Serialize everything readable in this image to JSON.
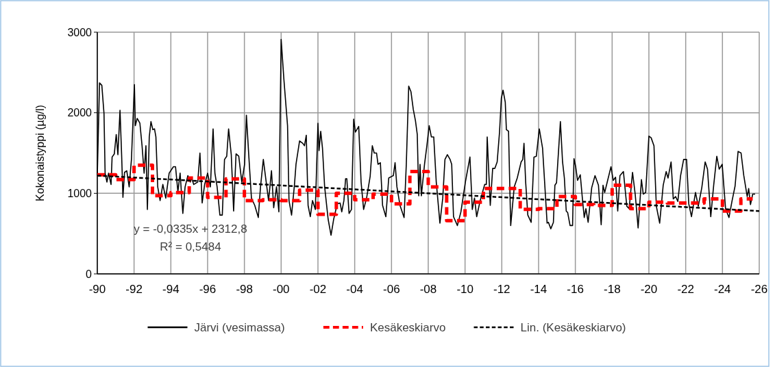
{
  "chart_data": {
    "type": "line",
    "ylabel": "Kokonaistyppi (µg/l)",
    "ylim": [
      0,
      3000
    ],
    "yticks": [
      0,
      1000,
      2000,
      3000
    ],
    "xlim": [
      "1990",
      "2026"
    ],
    "xticks": [
      {
        "value": "1990",
        "label": "-90"
      },
      {
        "value": "1992",
        "label": "-92"
      },
      {
        "value": "1994",
        "label": "-94"
      },
      {
        "value": "1996",
        "label": "-96"
      },
      {
        "value": "1998",
        "label": "-98"
      },
      {
        "value": "2000",
        "label": "-00"
      },
      {
        "value": "2002",
        "label": "-02"
      },
      {
        "value": "2004",
        "label": "-04"
      },
      {
        "value": "2006",
        "label": "-06"
      },
      {
        "value": "2008",
        "label": "-08"
      },
      {
        "value": "2010",
        "label": "-10"
      },
      {
        "value": "2012",
        "label": "-12"
      },
      {
        "value": "2014",
        "label": "-14"
      },
      {
        "value": "2016",
        "label": "-16"
      },
      {
        "value": "2018",
        "label": "-18"
      },
      {
        "value": "2020",
        "label": "-20"
      },
      {
        "value": "2022",
        "label": "-22"
      },
      {
        "value": "2024",
        "label": "-24"
      },
      {
        "value": "2026",
        "label": "-26"
      }
    ],
    "grid": true,
    "legend": "bottom",
    "marker": "none",
    "annotations": [
      "y = -0,0335x + 2312,8",
      "R² = 0,5484"
    ],
    "series": [
      {
        "name": "Järvi (vesimassa)",
        "type": "line",
        "color": "#000000",
        "line_style": "solid",
        "x": [
          "1990-01-01",
          "1990-02-14",
          "1990-04-01",
          "1990-05-14",
          "1990-06-05",
          "1990-07-11",
          "1990-08-13",
          "1990-10-01",
          "1990-10-22",
          "1990-12-05",
          "1991-01-12",
          "1991-02-14",
          "1991-03-28",
          "1991-04-29",
          "1991-05-25",
          "1991-06-26",
          "1991-08-09",
          "1991-09-26",
          "1991-11-10",
          "1992-01-08",
          "1992-01-26",
          "1992-03-03",
          "1992-04-26",
          "1992-06-08",
          "1992-07-19",
          "1992-08-24",
          "1992-09-22",
          "1992-10-29",
          "1992-12-02",
          "1993-01-08",
          "1993-02-10",
          "1993-03-10",
          "1993-04-15",
          "1993-06-01",
          "1993-07-26",
          "1993-09-22",
          "1993-11-28",
          "1994-02-21",
          "1994-04-04",
          "1994-05-21",
          "1994-07-04",
          "1994-08-27",
          "1994-10-11",
          "1994-12-05",
          "1995-01-23",
          "1995-02-17",
          "1995-04-01",
          "1995-06-19",
          "1995-08-02",
          "1995-09-15",
          "1995-11-03",
          "1996-01-01",
          "1996-02-25",
          "1996-04-19",
          "1996-05-25",
          "1996-07-08",
          "1996-09-01",
          "1996-10-19",
          "1996-12-02",
          "1997-01-15",
          "1997-02-21",
          "1997-04-15",
          "1997-06-01",
          "1997-07-19",
          "1997-09-11",
          "1997-11-10",
          "1998-01-05",
          "1998-02-10",
          "1998-03-28",
          "1998-05-21",
          "1998-07-26",
          "1998-10-04",
          "1998-11-17",
          "1999-01-12",
          "1999-03-10",
          "1999-04-26",
          "1999-06-23",
          "1999-08-06",
          "1999-10-01",
          "1999-11-17",
          "2000-01-01",
          "2000-02-25",
          "2000-05-07",
          "2000-06-05",
          "2000-07-26",
          "2000-09-22",
          "2000-10-22",
          "2001-01-01",
          "2001-03-06",
          "2001-04-08",
          "2001-05-14",
          "2001-06-19",
          "2001-08-02",
          "2001-09-15",
          "2001-11-10",
          "2002-01-01",
          "2002-01-23",
          "2002-02-25",
          "2002-04-01",
          "2002-05-14",
          "2002-07-22",
          "2002-09-18",
          "2002-11-10",
          "2003-01-19",
          "2003-03-17",
          "2003-04-19",
          "2003-06-01",
          "2003-07-04",
          "2003-07-29",
          "2003-09-11",
          "2003-10-29",
          "2003-12-12",
          "2004-01-15",
          "2004-03-21",
          "2004-05-07",
          "2004-06-26",
          "2004-08-24",
          "2004-11-03",
          "2004-12-16",
          "2005-01-23",
          "2005-03-10",
          "2005-04-08",
          "2005-05-25",
          "2005-07-08",
          "2005-09-11",
          "2005-11-07",
          "2006-01-05",
          "2006-02-07",
          "2006-03-13",
          "2006-04-19",
          "2006-06-19",
          "2006-09-08",
          "2006-10-22",
          "2006-12-09",
          "2007-01-23",
          "2007-03-10",
          "2007-04-22",
          "2007-05-28",
          "2007-06-26",
          "2007-07-22",
          "2007-08-17",
          "2007-10-19",
          "2007-12-05",
          "2008-01-19",
          "2008-03-03",
          "2008-04-19",
          "2008-06-08",
          "2008-08-20",
          "2008-10-15",
          "2008-11-28",
          "2009-01-15",
          "2009-03-10",
          "2009-04-11",
          "2009-05-17",
          "2009-08-02",
          "2009-10-11",
          "2010-01-08",
          "2010-04-08",
          "2010-05-25",
          "2010-07-08",
          "2010-08-20",
          "2010-10-29",
          "2011-01-26",
          "2011-02-28",
          "2011-03-17",
          "2011-05-17",
          "2011-07-04",
          "2011-08-17",
          "2011-10-01",
          "2011-11-17",
          "2011-12-23",
          "2012-01-26",
          "2012-03-10",
          "2012-04-01",
          "2012-05-14",
          "2012-06-26",
          "2012-09-04",
          "2012-11-03",
          "2013-01-19",
          "2013-02-21",
          "2013-03-17",
          "2013-04-19",
          "2013-06-01",
          "2013-08-06",
          "2013-10-01",
          "2013-11-17",
          "2014-01-15",
          "2014-03-21",
          "2014-06-19",
          "2014-07-15",
          "2014-09-01",
          "2014-10-22",
          "2014-11-21",
          "2014-12-23",
          "2015-03-10",
          "2015-04-22",
          "2015-05-28",
          "2015-07-04",
          "2015-08-02",
          "2015-09-18",
          "2015-11-07",
          "2015-12-05",
          "2016-01-08",
          "2016-02-14",
          "2016-04-08",
          "2016-05-25",
          "2016-06-26",
          "2016-07-29",
          "2016-09-11",
          "2016-11-21",
          "2017-01-26",
          "2017-04-04",
          "2017-05-28",
          "2017-07-04",
          "2017-08-06",
          "2017-09-22",
          "2017-12-09",
          "2018-01-23",
          "2018-03-10",
          "2018-04-22",
          "2018-06-05",
          "2018-08-13",
          "2018-10-19",
          "2018-12-05",
          "2019-02-10",
          "2019-04-04",
          "2019-06-01",
          "2019-08-06",
          "2019-09-11",
          "2019-10-29",
          "2020-01-01",
          "2020-02-14",
          "2020-04-11",
          "2020-05-28",
          "2020-08-02",
          "2020-10-11",
          "2020-12-09",
          "2021-01-15",
          "2021-03-17",
          "2021-04-29",
          "2021-06-15",
          "2021-07-29",
          "2021-09-22",
          "2021-11-21",
          "2022-01-19",
          "2022-03-03",
          "2022-04-26",
          "2022-07-15",
          "2022-09-08",
          "2022-11-17",
          "2023-01-23",
          "2023-03-10",
          "2023-05-14",
          "2023-07-11",
          "2023-09-11",
          "2023-10-29",
          "2023-12-27",
          "2024-03-03",
          "2024-05-10",
          "2024-07-08",
          "2024-09-08",
          "2024-11-07",
          "2025-01-05",
          "2025-02-28",
          "2025-05-07",
          "2025-06-05",
          "2025-07-11",
          "2025-08-24",
          "2025-10-11"
        ],
        "values": [
          1220,
          2370,
          2340,
          1990,
          1250,
          1140,
          1250,
          1110,
          1450,
          1490,
          1730,
          1480,
          2030,
          1480,
          950,
          1260,
          1280,
          1080,
          1420,
          2350,
          1840,
          1930,
          1870,
          1590,
          1250,
          1590,
          800,
          1700,
          1890,
          1790,
          1800,
          1700,
          1080,
          910,
          1110,
          940,
          1250,
          1330,
          1330,
          1020,
          1250,
          750,
          1080,
          1220,
          1140,
          1190,
          1110,
          1140,
          1500,
          880,
          1110,
          1250,
          1080,
          1800,
          1250,
          1080,
          730,
          730,
          1420,
          1460,
          1800,
          1480,
          780,
          1490,
          1460,
          1140,
          1360,
          1970,
          1480,
          940,
          850,
          700,
          1080,
          1420,
          1140,
          910,
          1280,
          820,
          1080,
          770,
          2910,
          2410,
          1840,
          910,
          730,
          1110,
          1360,
          1650,
          1620,
          1590,
          1720,
          850,
          710,
          910,
          800,
          1870,
          1530,
          1770,
          1560,
          1080,
          680,
          480,
          680,
          870,
          880,
          770,
          910,
          1180,
          1180,
          750,
          800,
          1920,
          1760,
          1830,
          1140,
          800,
          940,
          1210,
          1590,
          1500,
          1500,
          1360,
          1380,
          850,
          710,
          1190,
          1210,
          1220,
          1380,
          1080,
          850,
          700,
          1360,
          2330,
          2260,
          2040,
          1900,
          1730,
          970,
          1360,
          970,
          1360,
          1590,
          1840,
          1700,
          1700,
          1140,
          630,
          940,
          1420,
          1480,
          1420,
          1360,
          710,
          600,
          770,
          1140,
          1450,
          800,
          940,
          710,
          910,
          1110,
          1110,
          1700,
          850,
          1310,
          1310,
          1390,
          1760,
          2180,
          2280,
          2130,
          1790,
          1770,
          600,
          1080,
          1190,
          1390,
          1420,
          1620,
          1140,
          730,
          640,
          1450,
          1460,
          1800,
          1560,
          630,
          640,
          560,
          640,
          1100,
          1130,
          1890,
          1390,
          1190,
          780,
          760,
          600,
          600,
          1430,
          1330,
          1160,
          1230,
          900,
          700,
          810,
          640,
          1070,
          1220,
          1100,
          610,
          1100,
          1010,
          1130,
          1330,
          1160,
          1200,
          780,
          1220,
          1270,
          840,
          810,
          1260,
          990,
          570,
          1170,
          990,
          1010,
          1710,
          1690,
          1590,
          840,
          630,
          1100,
          1270,
          1190,
          1390,
          930,
          960,
          900,
          1220,
          1420,
          1420,
          870,
          710,
          1010,
          840,
          1070,
          1390,
          1300,
          710,
          1100,
          1460,
          1300,
          1360,
          810,
          700,
          900,
          1090,
          1520,
          1500,
          1220,
          960,
          1060,
          860,
          990,
          990
        ]
      },
      {
        "name": "Kesäkeskiarvo",
        "type": "step",
        "color": "#ff0000",
        "line_style": "dashed",
        "x": [
          "1990",
          "1991",
          "1992",
          "1993",
          "1994",
          "1995",
          "1996",
          "1997",
          "1998",
          "1999",
          "2000",
          "2001",
          "2002",
          "2003",
          "2004",
          "2005",
          "2006",
          "2007",
          "2008",
          "2009",
          "2010",
          "2011",
          "2012",
          "2013",
          "2014",
          "2015",
          "2016",
          "2017",
          "2018",
          "2019",
          "2020",
          "2021",
          "2022",
          "2023",
          "2024",
          "2025",
          "2025-08-24"
        ],
        "values": [
          1230,
          1170,
          1350,
          970,
          1010,
          1190,
          950,
          1180,
          910,
          920,
          910,
          1040,
          740,
          1000,
          920,
          990,
          870,
          1270,
          1080,
          660,
          890,
          1060,
          1060,
          800,
          810,
          960,
          860,
          850,
          1100,
          810,
          890,
          880,
          880,
          930,
          780,
          930,
          930
        ]
      },
      {
        "name": "Lin. (Kesäkeskiarvo)",
        "type": "line",
        "color": "#000000",
        "line_style": "dashed",
        "x": [
          "1990",
          "2026"
        ],
        "values": [
          1220,
          780
        ]
      }
    ]
  }
}
